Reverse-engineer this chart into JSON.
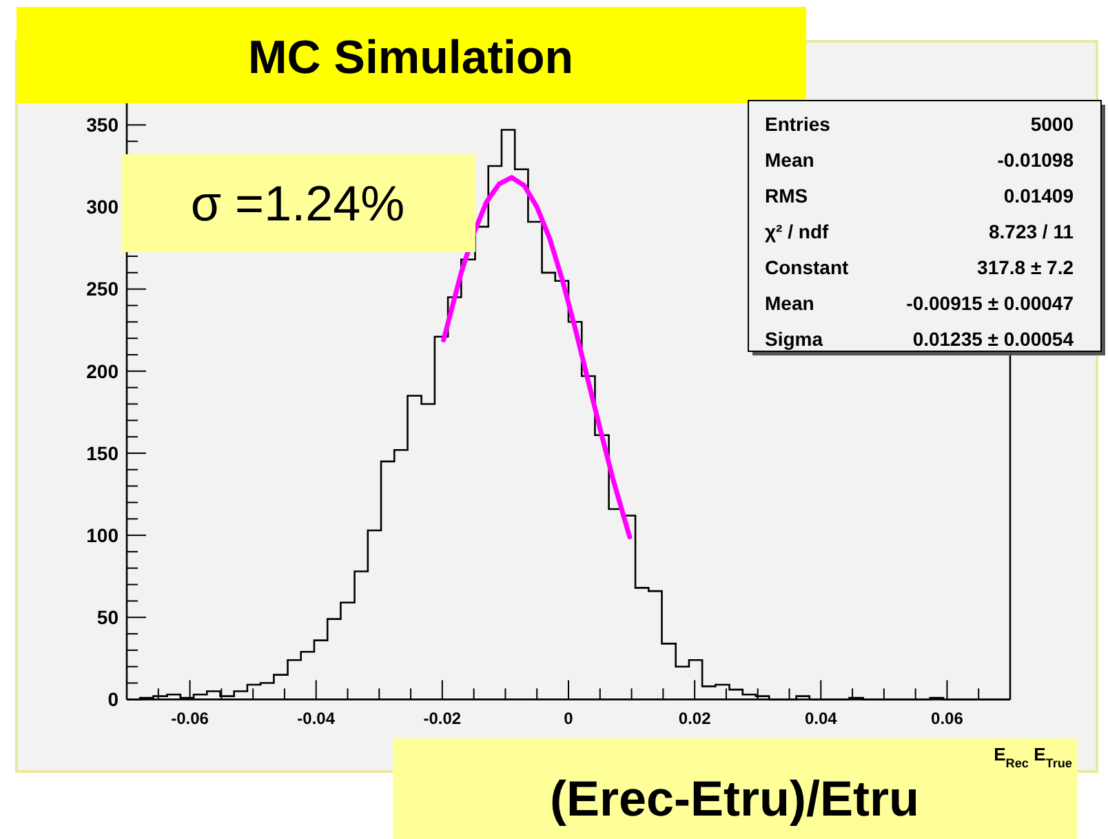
{
  "chart_data": {
    "type": "histogram",
    "title": "MC Simulation",
    "xlabel": "E$_{Rec}$ E$_{True}$",
    "xlim": [
      -0.07,
      0.07
    ],
    "xticks": [
      -0.06,
      -0.04,
      -0.02,
      0,
      0.02,
      0.04,
      0.06
    ],
    "ylim": [
      0,
      364
    ],
    "yticks": [
      0,
      50,
      100,
      150,
      200,
      250,
      300,
      350
    ],
    "bins": [
      -0.07,
      -0.0679,
      -0.0658,
      -0.0636,
      -0.0615,
      -0.0594,
      -0.0573,
      -0.0552,
      -0.053,
      -0.0509,
      -0.0488,
      -0.0467,
      -0.0445,
      -0.0424,
      -0.0403,
      -0.0382,
      -0.0361,
      -0.0339,
      -0.0318,
      -0.0297,
      -0.0276,
      -0.0255,
      -0.0233,
      -0.0212,
      -0.0191,
      -0.017,
      -0.0148,
      -0.0127,
      -0.0106,
      -0.0085,
      -0.0064,
      -0.0042,
      -0.0021,
      0,
      0.0021,
      0.0042,
      0.0064,
      0.0085,
      0.0106,
      0.0127,
      0.0148,
      0.017,
      0.0191,
      0.0212,
      0.0233,
      0.0255,
      0.0276,
      0.0297,
      0.0318,
      0.0339,
      0.0361,
      0.0382,
      0.0403,
      0.0424,
      0.0445,
      0.0467,
      0.0488,
      0.0509,
      0.053,
      0.0552,
      0.0573,
      0.0594,
      0.0615,
      0.0636,
      0.0658,
      0.0679,
      0.07
    ],
    "series": [
      {
        "color": "#000000",
        "values": [
          0,
          1,
          2,
          3,
          1,
          3,
          5,
          2,
          5,
          9,
          10,
          15,
          24,
          29,
          36,
          49,
          59,
          78,
          103,
          145,
          152,
          185,
          180,
          221,
          245,
          268,
          288,
          325,
          347,
          323,
          291,
          260,
          255,
          230,
          197,
          161,
          116,
          112,
          68,
          66,
          34,
          20,
          24,
          8,
          9,
          6,
          3,
          2,
          0,
          0,
          2,
          0,
          0,
          0,
          1,
          0,
          0,
          0,
          0,
          0,
          1,
          0,
          0,
          0,
          0,
          0
        ]
      },
      {
        "type": "line",
        "color": "#ff00ff",
        "x": [
          -0.0198,
          -0.017,
          -0.015,
          -0.013,
          -0.011,
          -0.009,
          -0.007,
          -0.005,
          -0.003,
          -0.001,
          0.001,
          0.003,
          0.005,
          0.007,
          0.0097
        ],
        "values": [
          219,
          260,
          284,
          303,
          314,
          318,
          313,
          300,
          281,
          256,
          227,
          196,
          165,
          135,
          99
        ]
      }
    ],
    "annotations": [
      "σ =1.24%",
      "(Erec-Etru)/Etru",
      "Entries\t5000",
      "Mean\t-0.01098",
      "RMS\t0.01409",
      "χ² / ndf\t8.723 / 11",
      "Constant\t317.8 ± 7.2",
      "Mean\t-0.00915 ± 0.00047",
      "Sigma\t0.01235 ± 0.00054"
    ]
  }
}
